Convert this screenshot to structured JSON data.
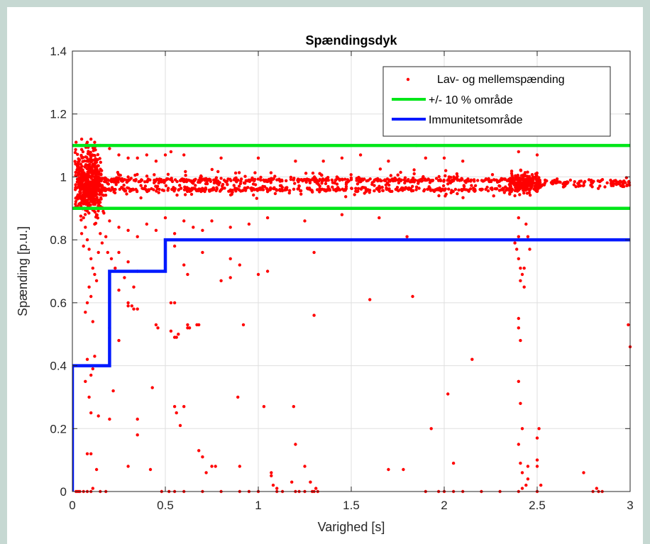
{
  "chart_data": {
    "type": "scatter",
    "title": "Spændingsdyk",
    "xlabel": "Varighed [s]",
    "ylabel": "Spænding [p.u.]",
    "xlim": [
      0,
      3
    ],
    "ylim": [
      0,
      1.4
    ],
    "xticks": [
      0,
      0.5,
      1,
      1.5,
      2,
      2.5,
      3
    ],
    "xtick_labels": [
      "0",
      "0.5",
      "1",
      "1.5",
      "2",
      "2.5",
      "3"
    ],
    "yticks": [
      0,
      0.2,
      0.4,
      0.6,
      0.8,
      1,
      1.2,
      1.4
    ],
    "ytick_labels": [
      "0",
      "0.2",
      "0.4",
      "0.6",
      "0.8",
      "1",
      "1.2",
      "1.4"
    ],
    "grid": true,
    "legend_position": "top-right",
    "series": [
      {
        "name": "Lav- og mellemspænding",
        "kind": "scatter",
        "color": "#ff0000",
        "points": [
          [
            0.02,
            1.11
          ],
          [
            0.05,
            1.12
          ],
          [
            0.08,
            1.11
          ],
          [
            0.1,
            1.12
          ],
          [
            0.12,
            1.11
          ],
          [
            0.15,
            1.1
          ],
          [
            0.2,
            1.09
          ],
          [
            0.25,
            1.07
          ],
          [
            0.3,
            1.06
          ],
          [
            0.35,
            1.06
          ],
          [
            0.4,
            1.07
          ],
          [
            0.45,
            1.05
          ],
          [
            0.5,
            1.07
          ],
          [
            0.53,
            1.08
          ],
          [
            0.6,
            1.07
          ],
          [
            0.8,
            1.06
          ],
          [
            1.0,
            1.06
          ],
          [
            1.2,
            1.05
          ],
          [
            1.35,
            1.05
          ],
          [
            1.45,
            1.06
          ],
          [
            1.55,
            1.07
          ],
          [
            1.7,
            1.05
          ],
          [
            1.9,
            1.06
          ],
          [
            2.0,
            1.06
          ],
          [
            2.1,
            1.05
          ],
          [
            2.4,
            1.08
          ],
          [
            2.5,
            1.07
          ],
          [
            1.85,
            1.1
          ],
          [
            0.06,
            0.87
          ],
          [
            0.07,
            0.84
          ],
          [
            0.08,
            0.8
          ],
          [
            0.09,
            0.77
          ],
          [
            0.1,
            0.74
          ],
          [
            0.11,
            0.71
          ],
          [
            0.12,
            0.69
          ],
          [
            0.13,
            0.67
          ],
          [
            0.09,
            0.65
          ],
          [
            0.1,
            0.62
          ],
          [
            0.08,
            0.6
          ],
          [
            0.07,
            0.57
          ],
          [
            0.11,
            0.54
          ],
          [
            0.14,
            0.76
          ],
          [
            0.15,
            0.82
          ],
          [
            0.16,
            0.79
          ],
          [
            0.05,
            0.82
          ],
          [
            0.06,
            0.78
          ],
          [
            0.12,
            0.85
          ],
          [
            0.13,
            0.88
          ],
          [
            0.2,
            0.86
          ],
          [
            0.25,
            0.84
          ],
          [
            0.3,
            0.83
          ],
          [
            0.35,
            0.81
          ],
          [
            0.4,
            0.85
          ],
          [
            0.45,
            0.83
          ],
          [
            0.5,
            0.87
          ],
          [
            0.55,
            0.82
          ],
          [
            0.6,
            0.86
          ],
          [
            0.65,
            0.84
          ],
          [
            0.7,
            0.83
          ],
          [
            0.75,
            0.86
          ],
          [
            0.85,
            0.84
          ],
          [
            0.95,
            0.85
          ],
          [
            1.05,
            0.87
          ],
          [
            1.25,
            0.86
          ],
          [
            1.45,
            0.88
          ],
          [
            1.65,
            0.87
          ],
          [
            1.8,
            0.81
          ],
          [
            0.25,
            0.76
          ],
          [
            0.3,
            0.73
          ],
          [
            0.35,
            0.7
          ],
          [
            0.28,
            0.68
          ],
          [
            0.33,
            0.65
          ],
          [
            0.6,
            0.72
          ],
          [
            0.62,
            0.69
          ],
          [
            0.55,
            0.78
          ],
          [
            0.7,
            0.76
          ],
          [
            0.85,
            0.74
          ],
          [
            0.9,
            0.72
          ],
          [
            1.0,
            0.69
          ],
          [
            1.05,
            0.7
          ],
          [
            1.3,
            0.76
          ],
          [
            0.32,
            0.59
          ],
          [
            0.33,
            0.58
          ],
          [
            0.35,
            0.58
          ],
          [
            0.3,
            0.59
          ],
          [
            0.8,
            0.67
          ],
          [
            0.18,
            0.81
          ],
          [
            0.19,
            0.76
          ],
          [
            0.21,
            0.74
          ],
          [
            0.23,
            0.71
          ],
          [
            0.45,
            0.53
          ],
          [
            0.46,
            0.52
          ],
          [
            0.53,
            0.6
          ],
          [
            0.55,
            0.6
          ],
          [
            0.53,
            0.51
          ],
          [
            0.55,
            0.49
          ],
          [
            0.56,
            0.49
          ],
          [
            0.57,
            0.5
          ],
          [
            0.62,
            0.53
          ],
          [
            0.63,
            0.52
          ],
          [
            0.67,
            0.53
          ],
          [
            0.68,
            0.53
          ],
          [
            0.62,
            0.52
          ],
          [
            0.3,
            0.6
          ],
          [
            0.25,
            0.64
          ],
          [
            0.92,
            0.53
          ],
          [
            1.3,
            0.56
          ],
          [
            0.85,
            0.68
          ],
          [
            0.09,
            0.3
          ],
          [
            0.1,
            0.25
          ],
          [
            0.1,
            0.37
          ],
          [
            0.11,
            0.39
          ],
          [
            0.07,
            0.35
          ],
          [
            0.08,
            0.42
          ],
          [
            0.12,
            0.43
          ],
          [
            0.14,
            0.24
          ],
          [
            0.2,
            0.23
          ],
          [
            0.22,
            0.32
          ],
          [
            0.25,
            0.48
          ],
          [
            0.2,
            0.52
          ],
          [
            0.35,
            0.18
          ],
          [
            0.35,
            0.23
          ],
          [
            0.43,
            0.33
          ],
          [
            0.55,
            0.27
          ],
          [
            0.56,
            0.25
          ],
          [
            0.58,
            0.21
          ],
          [
            0.6,
            0.27
          ],
          [
            0.89,
            0.3
          ],
          [
            1.03,
            0.27
          ],
          [
            1.07,
            0.06
          ],
          [
            1.07,
            0.05
          ],
          [
            0.1,
            0.12
          ],
          [
            0.08,
            0.12
          ],
          [
            0.3,
            0.08
          ],
          [
            0.42,
            0.07
          ],
          [
            0.68,
            0.13
          ],
          [
            0.7,
            0.11
          ],
          [
            0.72,
            0.06
          ],
          [
            0.75,
            0.08
          ],
          [
            0.77,
            0.08
          ],
          [
            0.9,
            0.08
          ],
          [
            1.08,
            0.02
          ],
          [
            1.1,
            0.01
          ],
          [
            1.13,
            0.0
          ],
          [
            1.18,
            0.03
          ],
          [
            1.19,
            0.27
          ],
          [
            1.2,
            0.15
          ],
          [
            1.25,
            0.08
          ],
          [
            1.28,
            0.03
          ],
          [
            1.29,
            0.0
          ],
          [
            1.3,
            0.0
          ],
          [
            1.31,
            0.01
          ],
          [
            1.32,
            0.0
          ],
          [
            1.1,
            0.0
          ],
          [
            1.2,
            0.0
          ],
          [
            1.22,
            0.0
          ],
          [
            1.25,
            0.0
          ],
          [
            1.0,
            0.0
          ],
          [
            0.95,
            0.0
          ],
          [
            0.9,
            0.0
          ],
          [
            0.02,
            0.0
          ],
          [
            0.03,
            0.0
          ],
          [
            0.04,
            0.0
          ],
          [
            0.06,
            0.0
          ],
          [
            0.08,
            0.0
          ],
          [
            0.1,
            0.0
          ],
          [
            0.11,
            0.01
          ],
          [
            0.15,
            0.0
          ],
          [
            0.13,
            0.07
          ],
          [
            0.18,
            0.0
          ],
          [
            0.48,
            0.0
          ],
          [
            0.52,
            0.0
          ],
          [
            0.55,
            0.0
          ],
          [
            0.6,
            0.0
          ],
          [
            0.7,
            0.0
          ],
          [
            0.8,
            0.0
          ],
          [
            1.6,
            0.61
          ],
          [
            1.83,
            0.62
          ],
          [
            1.7,
            0.07
          ],
          [
            1.78,
            0.07
          ],
          [
            1.9,
            0.0
          ],
          [
            1.93,
            0.2
          ],
          [
            2.02,
            0.31
          ],
          [
            2.05,
            0.09
          ],
          [
            2.15,
            0.42
          ],
          [
            2.2,
            0.0
          ],
          [
            2.3,
            0.0
          ],
          [
            1.97,
            0.0
          ],
          [
            2.0,
            0.0
          ],
          [
            2.05,
            0.0
          ],
          [
            2.1,
            0.0
          ],
          [
            2.38,
            0.79
          ],
          [
            2.4,
            0.74
          ],
          [
            2.41,
            0.71
          ],
          [
            2.42,
            0.69
          ],
          [
            2.4,
            0.81
          ],
          [
            2.41,
            0.67
          ],
          [
            2.43,
            0.65
          ],
          [
            2.39,
            0.77
          ],
          [
            2.38,
            0.94
          ],
          [
            2.4,
            0.9
          ],
          [
            2.4,
            0.87
          ],
          [
            2.44,
            0.85
          ],
          [
            2.45,
            0.81
          ],
          [
            2.46,
            0.77
          ],
          [
            2.43,
            0.71
          ],
          [
            2.4,
            0.98
          ],
          [
            2.41,
            0.97
          ],
          [
            2.4,
            0.55
          ],
          [
            2.4,
            0.52
          ],
          [
            2.41,
            0.48
          ],
          [
            2.4,
            0.35
          ],
          [
            2.41,
            0.28
          ],
          [
            2.42,
            0.2
          ],
          [
            2.4,
            0.15
          ],
          [
            2.41,
            0.09
          ],
          [
            2.42,
            0.06
          ],
          [
            2.45,
            0.08
          ],
          [
            2.45,
            0.04
          ],
          [
            2.44,
            0.02
          ],
          [
            2.5,
            0.17
          ],
          [
            2.51,
            0.2
          ],
          [
            2.5,
            0.1
          ],
          [
            2.5,
            0.08
          ],
          [
            2.52,
            0.02
          ],
          [
            2.5,
            0.0
          ],
          [
            2.4,
            0.0
          ],
          [
            2.42,
            0.01
          ],
          [
            2.8,
            0.0
          ],
          [
            2.82,
            0.01
          ],
          [
            2.83,
            0.0
          ],
          [
            2.85,
            0.0
          ],
          [
            2.99,
            0.53
          ],
          [
            3.0,
            0.46
          ],
          [
            2.75,
            0.06
          ]
        ],
        "dense_band": {
          "x_range": [
            0.0,
            3.0
          ],
          "y_center": 0.98,
          "y_spread": 0.04,
          "near_zero_spread": 0.22,
          "approx_count": 1500
        }
      },
      {
        "name": "+/- 10 % område",
        "kind": "line",
        "color": "#00e619",
        "lines": [
          {
            "x": [
              0,
              3
            ],
            "y": [
              1.1,
              1.1
            ]
          },
          {
            "x": [
              0,
              3
            ],
            "y": [
              0.9,
              0.9
            ]
          }
        ]
      },
      {
        "name": "Immunitetsområde",
        "kind": "line",
        "color": "#0019ff",
        "x": [
          0,
          0,
          0.2,
          0.2,
          0.5,
          0.5,
          3
        ],
        "y": [
          0,
          0.4,
          0.4,
          0.7,
          0.7,
          0.8,
          0.8
        ]
      }
    ]
  }
}
